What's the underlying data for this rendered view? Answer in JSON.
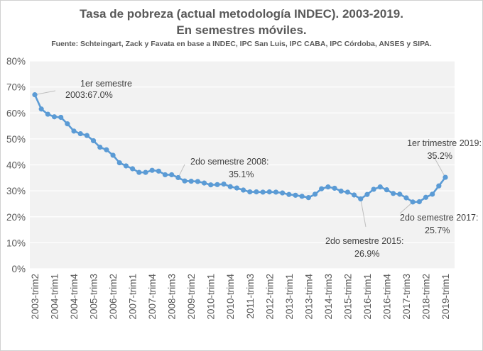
{
  "chart_data": {
    "type": "line",
    "title": "Tasa de pobreza (actual metodología INDEC). 2003-2019.",
    "subtitle": "En semestres móviles.",
    "source": "Fuente: Schteingart, Zack y Favata en base a INDEC, IPC San Luis, IPC CABA, IPC Córdoba, ANSES y SIPA.",
    "ylim": [
      0,
      80
    ],
    "yticks": [
      "0%",
      "10%",
      "20%",
      "30%",
      "40%",
      "50%",
      "60%",
      "70%",
      "80%"
    ],
    "x_tick_labels": [
      "2003-trim2",
      "2004-trim1",
      "2004-trim4",
      "2005-trim3",
      "2006-trim2",
      "2007-trim1",
      "2007-trim4",
      "2008-trim3",
      "2009-trim2",
      "2010-trim1",
      "2010-trim4",
      "2011-trim3",
      "2012-trim2",
      "2013-trim1",
      "2013-trim4",
      "2014-trim3",
      "2015-trim2",
      "2016-trim1",
      "2016-trim4",
      "2017-trim3",
      "2018-trim2",
      "2019-trim1"
    ],
    "grid": true,
    "legend": "none",
    "line_color": "#5b9bd5",
    "series": [
      {
        "values": [
          67.0,
          61.5,
          59.5,
          58.5,
          58.3,
          55.8,
          53.0,
          52.0,
          51.3,
          49.3,
          46.8,
          45.8,
          43.7,
          40.8,
          39.6,
          38.5,
          37.1,
          37.1,
          37.9,
          37.6,
          36.2,
          36.2,
          35.1,
          33.8,
          33.7,
          33.6,
          33.0,
          32.3,
          32.4,
          32.6,
          31.6,
          31.1,
          30.3,
          29.6,
          29.6,
          29.5,
          29.6,
          29.5,
          29.2,
          28.6,
          28.3,
          27.9,
          27.4,
          28.7,
          30.8,
          31.5,
          31.0,
          29.9,
          29.5,
          28.4,
          26.9,
          28.6,
          30.6,
          31.5,
          30.4,
          29.0,
          28.7,
          27.3,
          25.7,
          25.8,
          27.5,
          28.7,
          31.9,
          35.2
        ]
      }
    ],
    "annotations": [
      {
        "index": 0,
        "lines": [
          "1er semestre",
          "2003:67.0%"
        ]
      },
      {
        "index": 22,
        "lines": [
          "2do semestre 2008:",
          "35.1%"
        ]
      },
      {
        "index": 50,
        "lines": [
          "2do semestre 2015:",
          "26.9%"
        ]
      },
      {
        "index": 58,
        "lines": [
          "2do semestre 2017:",
          "25.7%"
        ]
      },
      {
        "index": 63,
        "lines": [
          "1er trimestre 2019:",
          "35.2%"
        ]
      }
    ]
  }
}
